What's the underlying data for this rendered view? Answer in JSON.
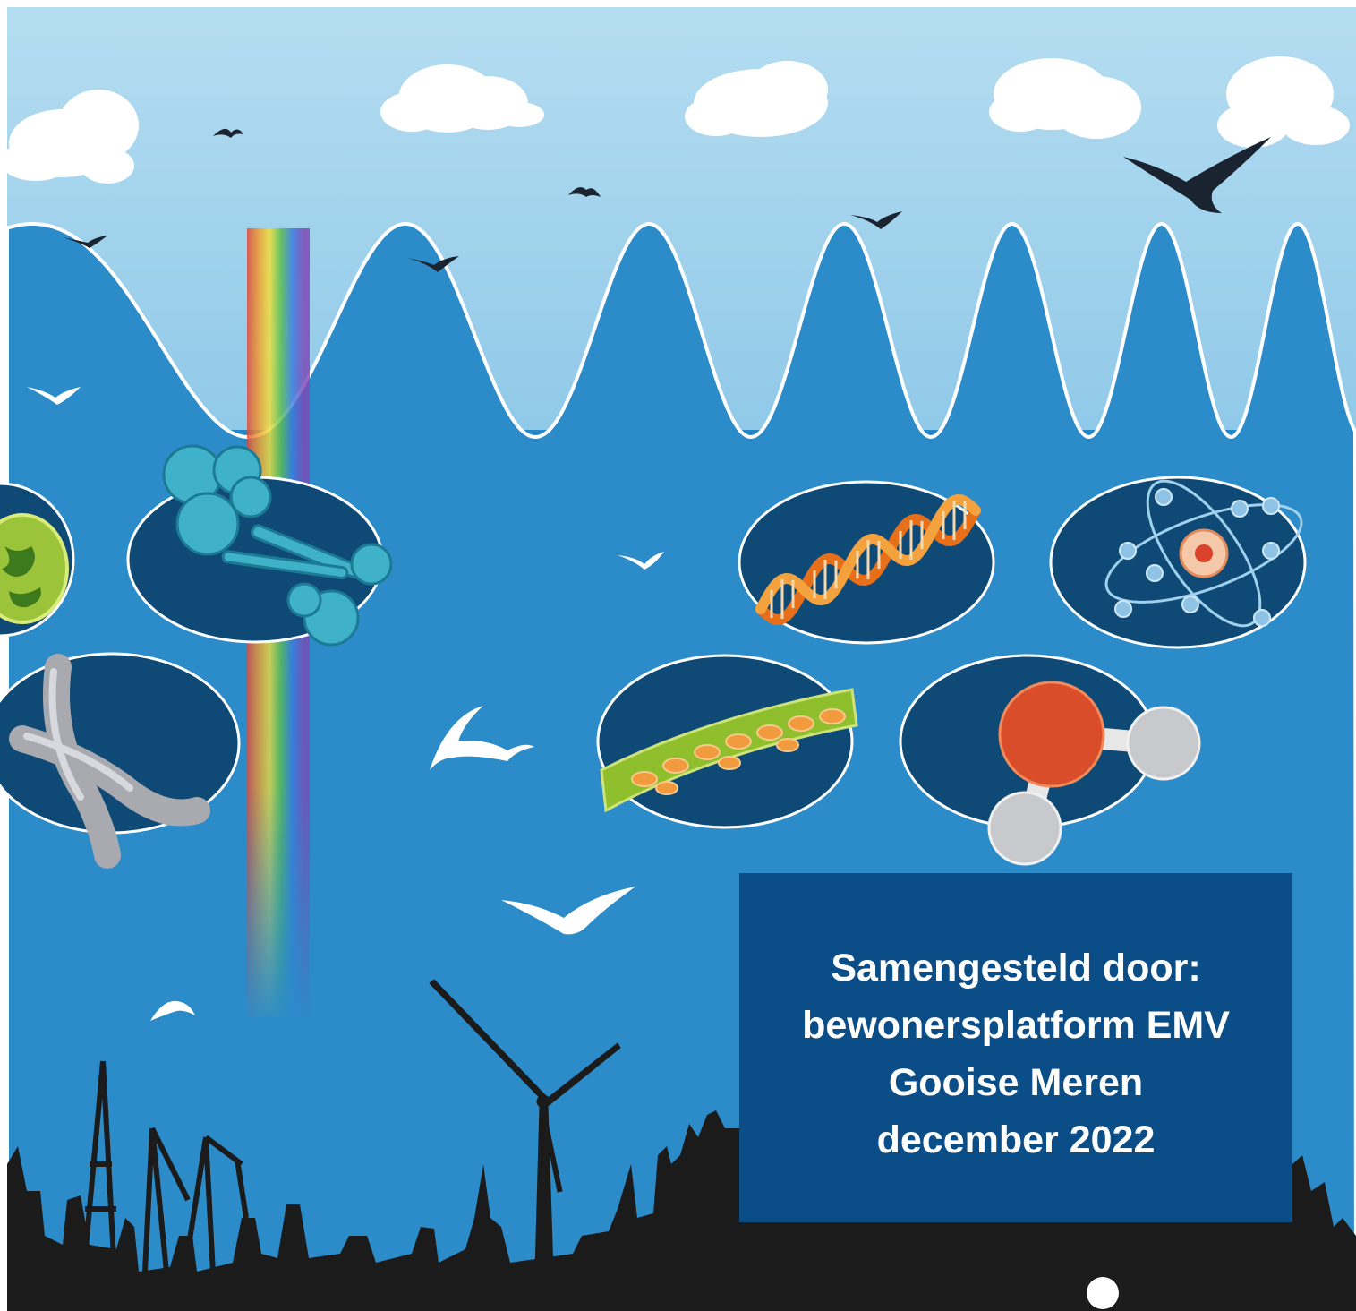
{
  "credit": {
    "line1": "Samengesteld door:",
    "line2": "bewonersplatform EMV",
    "line3": "Gooise Meren",
    "line4": "december 2022"
  },
  "colors": {
    "sky": "#a9d6ee",
    "wave_field": "#2c8bc9",
    "lower_field": "#2a92cf",
    "oval_fill": "#0f4a77",
    "credit_box": "#0b4d86",
    "skyline": "#1b1b1b"
  },
  "illustration": {
    "icons": [
      "cloud-icon",
      "bird-icon",
      "seagull-icon",
      "rainbow-beam",
      "cell-icon",
      "protein-icon",
      "dna-icon",
      "atom-icon",
      "chromosome-icon",
      "plant-cell-icon",
      "water-molecule-icon",
      "wind-turbine-icon",
      "crane-icon",
      "city-skyline"
    ]
  }
}
